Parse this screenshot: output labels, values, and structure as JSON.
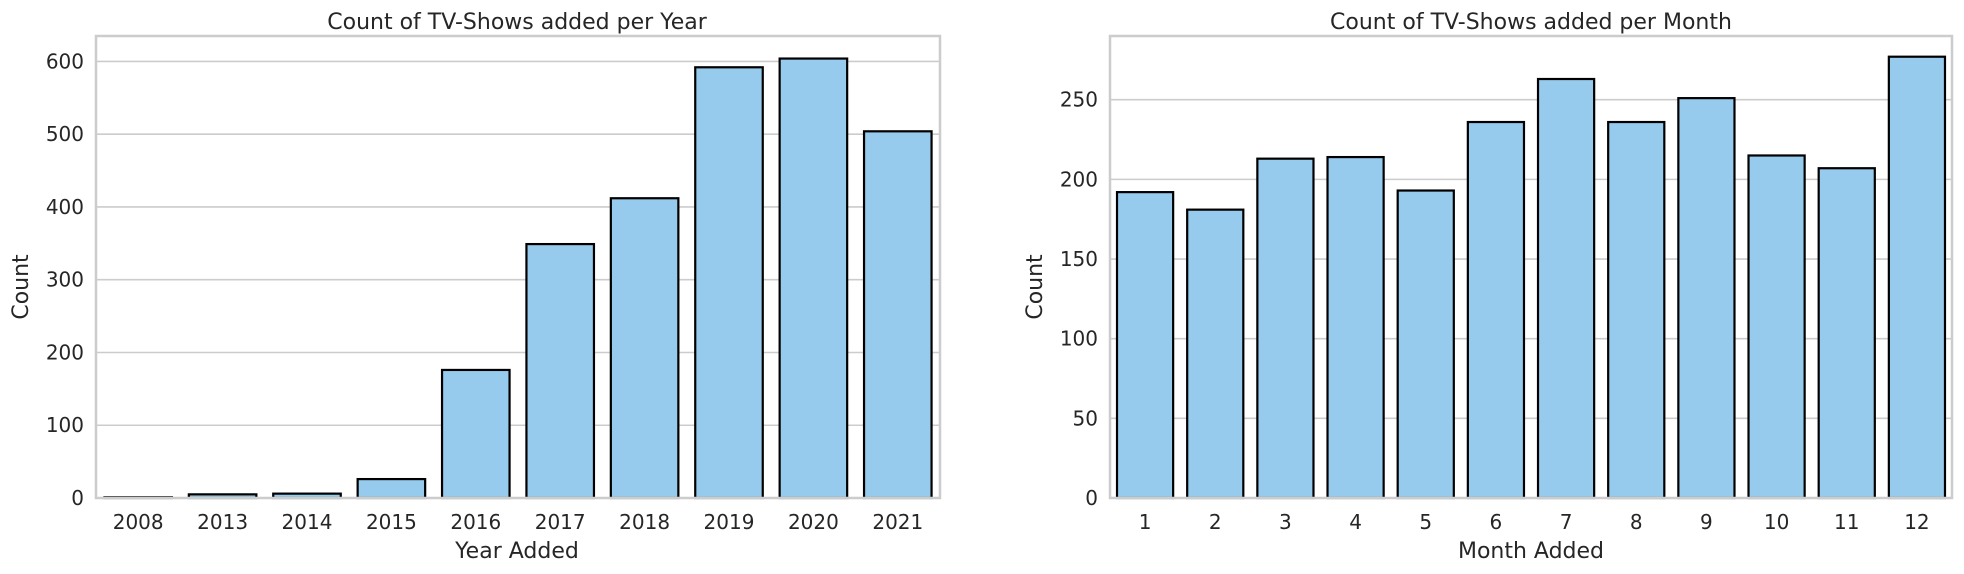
{
  "bar_color": "#96CBEE",
  "chart_data": [
    {
      "type": "bar",
      "title": "Count of TV-Shows added per Year",
      "xlabel": "Year Added",
      "ylabel": "Count",
      "categories": [
        "2008",
        "2013",
        "2014",
        "2015",
        "2016",
        "2017",
        "2018",
        "2019",
        "2020",
        "2021"
      ],
      "values": [
        1,
        5,
        6,
        26,
        176,
        349,
        412,
        592,
        604,
        504
      ],
      "ylim": [
        0,
        635
      ],
      "yticks": [
        0,
        100,
        200,
        300,
        400,
        500,
        600
      ],
      "grid": "horizontal"
    },
    {
      "type": "bar",
      "title": "Count of TV-Shows added per Month",
      "xlabel": "Month Added",
      "ylabel": "Count",
      "categories": [
        "1",
        "2",
        "3",
        "4",
        "5",
        "6",
        "7",
        "8",
        "9",
        "10",
        "11",
        "12"
      ],
      "values": [
        192,
        181,
        213,
        214,
        193,
        236,
        263,
        236,
        251,
        215,
        207,
        277
      ],
      "ylim": [
        0,
        290
      ],
      "yticks": [
        0,
        50,
        100,
        150,
        200,
        250
      ],
      "grid": "horizontal"
    }
  ]
}
